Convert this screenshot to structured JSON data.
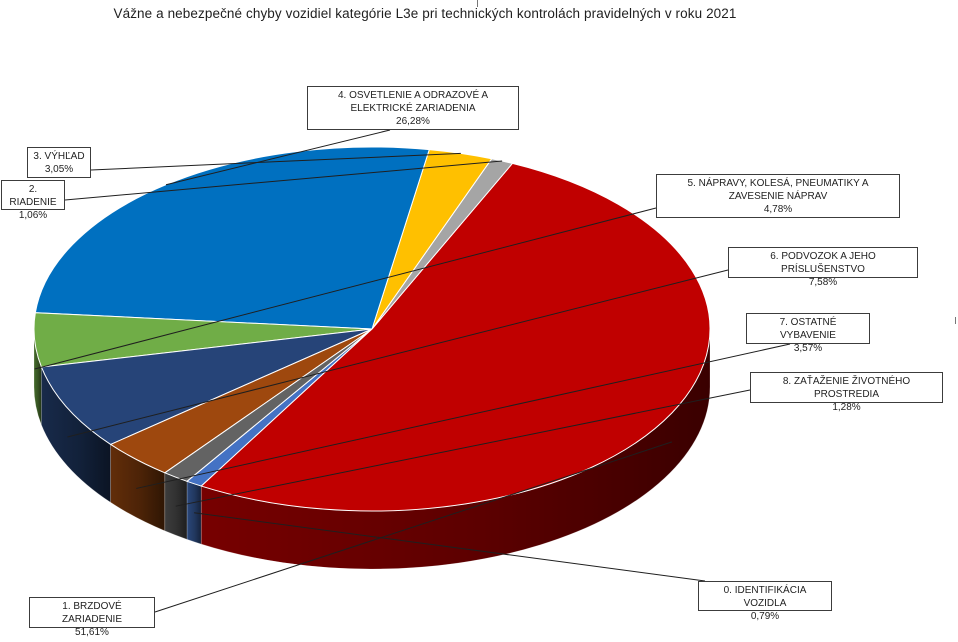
{
  "chart_data": {
    "type": "pie",
    "title": "Vážne a nebezpečné chyby vozidiel kategórie L3e pri technických kontrolách pravidelných v roku 2021",
    "slices": [
      {
        "label": "0. IDENTIFIKÁCIA VOZIDLA",
        "value": 0.79,
        "value_text": "0,79%",
        "color": "#4472c4"
      },
      {
        "label": "1. BRZDOVÉ ZARIADENIE",
        "value": 51.61,
        "value_text": "51,61%",
        "color": "#c00000"
      },
      {
        "label": "2. RIADENIE",
        "value": 1.06,
        "value_text": "1,06%",
        "color": "#a5a5a5"
      },
      {
        "label": "3. VÝHĽAD",
        "value": 3.05,
        "value_text": "3,05%",
        "color": "#ffc000"
      },
      {
        "label": "4. OSVETLENIE A ODRAZOVÉ A ELEKTRICKÉ ZARIADENIA",
        "value": 26.28,
        "value_text": "26,28%",
        "color": "#0070c0"
      },
      {
        "label": "5. NÁPRAVY, KOLESÁ, PNEUMATIKY A ZAVESENIE NÁPRAV",
        "value": 4.78,
        "value_text": "4,78%",
        "color": "#70ad47"
      },
      {
        "label": "6. PODVOZOK A JEHO PRÍSLUŠENSTVO",
        "value": 7.58,
        "value_text": "7,58%",
        "color": "#264478"
      },
      {
        "label": "7. OSTATNÉ VYBAVENIE",
        "value": 3.57,
        "value_text": "3,57%",
        "color": "#9e480e"
      },
      {
        "label": "8. ZAŤAŽENIE ŽIVOTNÉHO PROSTREDIA",
        "value": 1.28,
        "value_text": "1,28%",
        "color": "#636363"
      }
    ]
  }
}
